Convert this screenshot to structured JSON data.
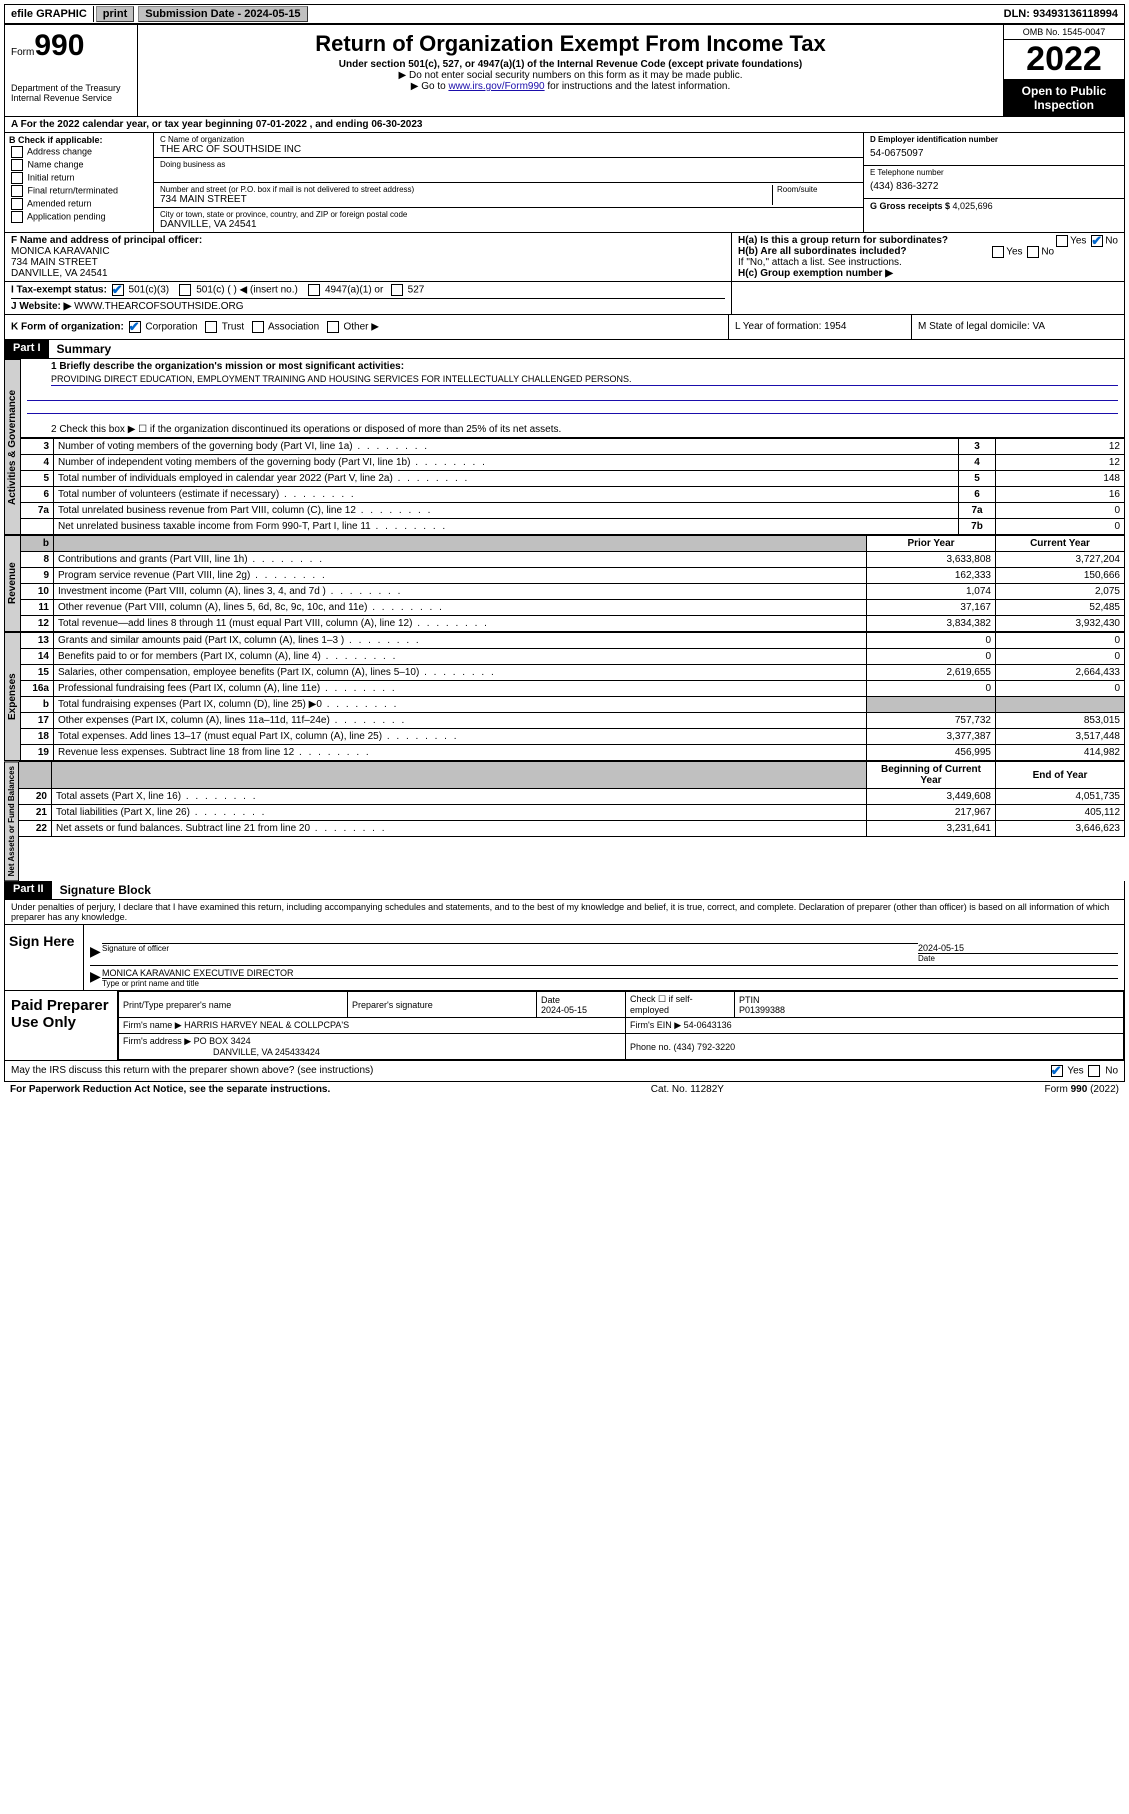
{
  "topbar": {
    "efile": "efile GRAPHIC",
    "print": "print",
    "submission_label": "Submission Date - ",
    "submission_date": "2024-05-15",
    "dln_label": "DLN: ",
    "dln": "93493136118994"
  },
  "header": {
    "form_prefix": "Form",
    "form_no": "990",
    "dept": "Department of the Treasury",
    "irs": "Internal Revenue Service",
    "title": "Return of Organization Exempt From Income Tax",
    "subtitle": "Under section 501(c), 527, or 4947(a)(1) of the Internal Revenue Code (except private foundations)",
    "note1": "▶ Do not enter social security numbers on this form as it may be made public.",
    "note2_pre": "▶ Go to ",
    "note2_link": "www.irs.gov/Form990",
    "note2_post": " for instructions and the latest information.",
    "omb": "OMB No. 1545-0047",
    "year": "2022",
    "open": "Open to Public Inspection"
  },
  "row_a": "A For the 2022 calendar year, or tax year beginning 07-01-2022   , and ending 06-30-2023",
  "box_b": {
    "title": "B Check if applicable:",
    "items": [
      "Address change",
      "Name change",
      "Initial return",
      "Final return/terminated",
      "Amended return",
      "Application pending"
    ]
  },
  "box_c": {
    "name_label": "C Name of organization",
    "name": "THE ARC OF SOUTHSIDE INC",
    "dba_label": "Doing business as",
    "addr_label": "Number and street (or P.O. box if mail is not delivered to street address)",
    "room_label": "Room/suite",
    "addr": "734 MAIN STREET",
    "city_label": "City or town, state or province, country, and ZIP or foreign postal code",
    "city": "DANVILLE, VA  24541"
  },
  "box_d": {
    "label": "D Employer identification number",
    "val": "54-0675097",
    "tel_label": "E Telephone number",
    "tel": "(434) 836-3272",
    "gross_label": "G Gross receipts $ ",
    "gross": "4,025,696"
  },
  "box_f": {
    "label": "F Name and address of principal officer:",
    "name": "MONICA KARAVANIC",
    "addr1": "734 MAIN STREET",
    "addr2": "DANVILLE, VA  24541"
  },
  "box_h": {
    "ha": "H(a)  Is this a group return for subordinates?",
    "hb": "H(b)  Are all subordinates included?",
    "hb_note": "If \"No,\" attach a list. See instructions.",
    "hc": "H(c)  Group exemption number ▶"
  },
  "row_i": {
    "label": "I   Tax-exempt status:",
    "opts": [
      "501(c)(3)",
      "501(c) (  ) ◀ (insert no.)",
      "4947(a)(1) or",
      "527"
    ]
  },
  "row_j": {
    "label": "J   Website: ▶ ",
    "val": "WWW.THEARCOFSOUTHSIDE.ORG"
  },
  "row_k": {
    "label": "K Form of organization:",
    "opts": [
      "Corporation",
      "Trust",
      "Association",
      "Other ▶"
    ],
    "l": "L Year of formation: 1954",
    "m": "M State of legal domicile: VA"
  },
  "part1": {
    "hdr": "Part I",
    "title": "Summary",
    "l1": "1  Briefly describe the organization's mission or most significant activities:",
    "mission": "PROVIDING DIRECT EDUCATION, EMPLOYMENT TRAINING AND HOUSING SERVICES FOR INTELLECTUALLY CHALLENGED PERSONS.",
    "l2": "2   Check this box ▶ ☐  if the organization discontinued its operations or disposed of more than 25% of its net assets."
  },
  "vtabs": {
    "gov": "Activities & Governance",
    "rev": "Revenue",
    "exp": "Expenses",
    "net": "Net Assets or Fund Balances"
  },
  "gov_rows": [
    {
      "n": "3",
      "d": "Number of voting members of the governing body (Part VI, line 1a)",
      "box": "3",
      "v": "12"
    },
    {
      "n": "4",
      "d": "Number of independent voting members of the governing body (Part VI, line 1b)",
      "box": "4",
      "v": "12"
    },
    {
      "n": "5",
      "d": "Total number of individuals employed in calendar year 2022 (Part V, line 2a)",
      "box": "5",
      "v": "148"
    },
    {
      "n": "6",
      "d": "Total number of volunteers (estimate if necessary)",
      "box": "6",
      "v": "16"
    },
    {
      "n": "7a",
      "d": "Total unrelated business revenue from Part VIII, column (C), line 12",
      "box": "7a",
      "v": "0"
    },
    {
      "n": "",
      "d": "Net unrelated business taxable income from Form 990-T, Part I, line 11",
      "box": "7b",
      "v": "0"
    }
  ],
  "col_hdrs": {
    "prior": "Prior Year",
    "current": "Current Year",
    "boy": "Beginning of Current Year",
    "eoy": "End of Year"
  },
  "rev_rows": [
    {
      "n": "8",
      "d": "Contributions and grants (Part VIII, line 1h)",
      "p": "3,633,808",
      "c": "3,727,204"
    },
    {
      "n": "9",
      "d": "Program service revenue (Part VIII, line 2g)",
      "p": "162,333",
      "c": "150,666"
    },
    {
      "n": "10",
      "d": "Investment income (Part VIII, column (A), lines 3, 4, and 7d )",
      "p": "1,074",
      "c": "2,075"
    },
    {
      "n": "11",
      "d": "Other revenue (Part VIII, column (A), lines 5, 6d, 8c, 9c, 10c, and 11e)",
      "p": "37,167",
      "c": "52,485"
    },
    {
      "n": "12",
      "d": "Total revenue—add lines 8 through 11 (must equal Part VIII, column (A), line 12)",
      "p": "3,834,382",
      "c": "3,932,430"
    }
  ],
  "exp_rows": [
    {
      "n": "13",
      "d": "Grants and similar amounts paid (Part IX, column (A), lines 1–3 )",
      "p": "0",
      "c": "0"
    },
    {
      "n": "14",
      "d": "Benefits paid to or for members (Part IX, column (A), line 4)",
      "p": "0",
      "c": "0"
    },
    {
      "n": "15",
      "d": "Salaries, other compensation, employee benefits (Part IX, column (A), lines 5–10)",
      "p": "2,619,655",
      "c": "2,664,433"
    },
    {
      "n": "16a",
      "d": "Professional fundraising fees (Part IX, column (A), line 11e)",
      "p": "0",
      "c": "0"
    },
    {
      "n": "b",
      "d": "Total fundraising expenses (Part IX, column (D), line 25) ▶0",
      "p": "",
      "c": "",
      "shade": true
    },
    {
      "n": "17",
      "d": "Other expenses (Part IX, column (A), lines 11a–11d, 11f–24e)",
      "p": "757,732",
      "c": "853,015"
    },
    {
      "n": "18",
      "d": "Total expenses. Add lines 13–17 (must equal Part IX, column (A), line 25)",
      "p": "3,377,387",
      "c": "3,517,448"
    },
    {
      "n": "19",
      "d": "Revenue less expenses. Subtract line 18 from line 12",
      "p": "456,995",
      "c": "414,982"
    }
  ],
  "net_rows": [
    {
      "n": "20",
      "d": "Total assets (Part X, line 16)",
      "p": "3,449,608",
      "c": "4,051,735"
    },
    {
      "n": "21",
      "d": "Total liabilities (Part X, line 26)",
      "p": "217,967",
      "c": "405,112"
    },
    {
      "n": "22",
      "d": "Net assets or fund balances. Subtract line 21 from line 20",
      "p": "3,231,641",
      "c": "3,646,623"
    }
  ],
  "part2": {
    "hdr": "Part II",
    "title": "Signature Block",
    "decl": "Under penalties of perjury, I declare that I have examined this return, including accompanying schedules and statements, and to the best of my knowledge and belief, it is true, correct, and complete. Declaration of preparer (other than officer) is based on all information of which preparer has any knowledge."
  },
  "sign": {
    "here": "Sign Here",
    "sig_label": "Signature of officer",
    "date_label": "Date",
    "date": "2024-05-15",
    "name": "MONICA KARAVANIC  EXECUTIVE DIRECTOR",
    "name_label": "Type or print name and title"
  },
  "prep": {
    "label": "Paid Preparer Use Only",
    "h1": "Print/Type preparer's name",
    "h2": "Preparer's signature",
    "h3": "Date",
    "h3v": "2024-05-15",
    "h4": "Check ☐ if self-employed",
    "h5": "PTIN",
    "h5v": "P01399388",
    "firm_label": "Firm's name    ▶ ",
    "firm": "HARRIS HARVEY NEAL & COLLPCPA'S",
    "ein_label": "Firm's EIN ▶ ",
    "ein": "54-0643136",
    "addr_label": "Firm's address ▶ ",
    "addr1": "PO BOX 3424",
    "addr2": "DANVILLE, VA  245433424",
    "phone_label": "Phone no. ",
    "phone": "(434) 792-3220"
  },
  "footer": {
    "discuss": "May the IRS discuss this return with the preparer shown above? (see instructions)",
    "paperwork": "For Paperwork Reduction Act Notice, see the separate instructions.",
    "cat": "Cat. No. 11282Y",
    "form": "Form 990 (2022)"
  }
}
